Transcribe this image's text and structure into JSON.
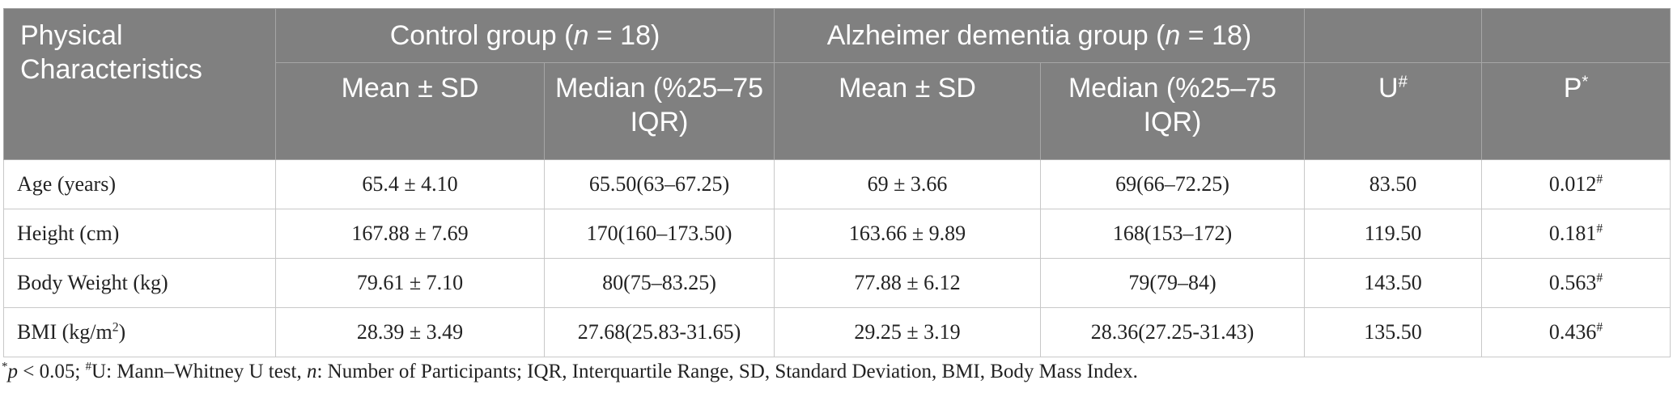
{
  "table": {
    "header": {
      "row_label": "Physical Characteristics",
      "groups": [
        [
          "Control group (",
          {
            "text": "n",
            "style": "italic"
          },
          " = 18)"
        ],
        [
          "Alzheimer dementia group (",
          {
            "text": "n",
            "style": "italic"
          },
          " = 18)"
        ]
      ],
      "columns": [
        "Mean ± SD",
        "Median (%25–75 IQR)",
        "Mean ± SD",
        "Median (%25–75 IQR)",
        [
          "U",
          {
            "text": "#",
            "style": "sup"
          }
        ],
        [
          "P",
          {
            "text": "*",
            "style": "sup"
          }
        ]
      ]
    },
    "rows": [
      [
        "Age (years)",
        "65.4 ± 4.10",
        "65.50(63–67.25)",
        "69 ± 3.66",
        "69(66–72.25)",
        "83.50",
        [
          "0.012",
          {
            "text": "#",
            "style": "sup"
          }
        ]
      ],
      [
        "Height (cm)",
        "167.88 ± 7.69",
        "170(160–173.50)",
        "163.66 ± 9.89",
        "168(153–172)",
        "119.50",
        [
          "0.181",
          {
            "text": "#",
            "style": "sup"
          }
        ]
      ],
      [
        "Body Weight (kg)",
        "79.61 ± 7.10",
        "80(75–83.25)",
        "77.88 ± 6.12",
        "79(79–84)",
        "143.50",
        [
          "0.563",
          {
            "text": "#",
            "style": "sup"
          }
        ]
      ],
      [
        [
          "BMI (kg/m",
          {
            "text": "2",
            "style": "sup"
          },
          ")"
        ],
        "28.39 ± 3.49",
        "27.68(25.83-31.65)",
        "29.25 ± 3.19",
        "28.36(27.25-31.43)",
        "135.50",
        [
          "0.436",
          {
            "text": "#",
            "style": "sup"
          }
        ]
      ]
    ]
  },
  "footnote": [
    {
      "text": "*",
      "style": "sup"
    },
    {
      "text": "p",
      "style": "italic"
    },
    " < 0.05; ",
    {
      "text": "#",
      "style": "sup"
    },
    "U: Mann–Whitney U test, ",
    {
      "text": "n",
      "style": "italic"
    },
    ": Number of Participants; IQR, Interquartile Range, SD, Standard Deviation, BMI, Body Mass Index."
  ]
}
